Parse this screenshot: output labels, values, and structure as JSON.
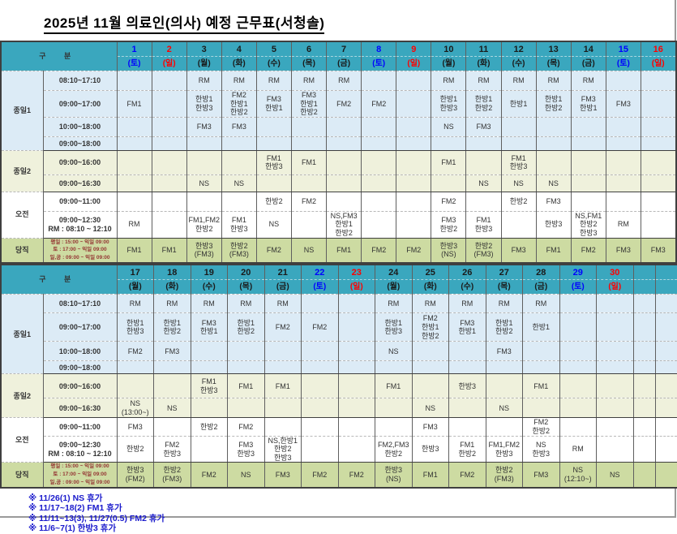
{
  "title": "2025년 11월  의료인(의사) 예정 근무표(서청솔)",
  "colors": {
    "header-bg": "#3AA7BE",
    "band-full1": "#DCEBF6",
    "band-full2": "#EFF1DC",
    "band-morning": "#FFFFFF",
    "band-duty": "#CDDBA2",
    "sat": "#0000FF",
    "sun": "#FF0000",
    "note-text": "#1A1ACC",
    "duty-time-text": "#943634",
    "cell-text": "#333333"
  },
  "header_label": "구  분",
  "rows": [
    {
      "group": "종일1",
      "group_span": 4,
      "time": "08:10~17:10"
    },
    {
      "time": "09:00~17:00"
    },
    {
      "time": "10:00~18:00"
    },
    {
      "time": "09:00~18:00"
    },
    {
      "group": "종일2",
      "group_span": 2,
      "time": "09:00~16:00"
    },
    {
      "time": "09:00~16:30"
    },
    {
      "group": "오전",
      "group_span": 2,
      "time": "09:00~11:00"
    },
    {
      "time": "09:00~12:30\nRM : 08:10 ~ 12:10"
    },
    {
      "group": "당직",
      "group_span": 1,
      "small": true,
      "time": "평일 : 15:00 ~ 익일 09:00\n토   : 17:00 ~ 익일 09:00\n일,공 : 09:00 ~ 익일 09:00"
    }
  ],
  "tables": [
    {
      "days": [
        {
          "num": "1",
          "dow": "(토)",
          "color": "sat"
        },
        {
          "num": "2",
          "dow": "(일)",
          "color": "sun"
        },
        {
          "num": "3",
          "dow": "(월)",
          "color": "wk"
        },
        {
          "num": "4",
          "dow": "(화)",
          "color": "wk"
        },
        {
          "num": "5",
          "dow": "(수)",
          "color": "wk"
        },
        {
          "num": "6",
          "dow": "(목)",
          "color": "wk"
        },
        {
          "num": "7",
          "dow": "(금)",
          "color": "wk"
        },
        {
          "num": "8",
          "dow": "(토)",
          "color": "sat"
        },
        {
          "num": "9",
          "dow": "(일)",
          "color": "sun"
        },
        {
          "num": "10",
          "dow": "(월)",
          "color": "wk"
        },
        {
          "num": "11",
          "dow": "(화)",
          "color": "wk"
        },
        {
          "num": "12",
          "dow": "(수)",
          "color": "wk"
        },
        {
          "num": "13",
          "dow": "(목)",
          "color": "wk"
        },
        {
          "num": "14",
          "dow": "(금)",
          "color": "wk"
        },
        {
          "num": "15",
          "dow": "(토)",
          "color": "sat"
        },
        {
          "num": "16",
          "dow": "(일)",
          "color": "sun"
        }
      ],
      "cells": [
        [
          "",
          "",
          "RM",
          "RM",
          "RM",
          "RM",
          "RM",
          "",
          "",
          "RM",
          "RM",
          "RM",
          "RM",
          "RM",
          "",
          ""
        ],
        [
          "FM1",
          "",
          "한방1\n한방3",
          "FM2\n한방1\n한방2",
          "FM3\n한방1",
          "FM3\n한방1\n한방2",
          "FM2",
          "FM2",
          "",
          "한방1\n한방3",
          "한방1\n한방2",
          "한방1",
          "한방1\n한방2",
          "FM3\n한방1",
          "FM3",
          ""
        ],
        [
          "",
          "",
          "FM3",
          "FM3",
          "",
          "",
          "",
          "",
          "",
          "NS",
          "FM3",
          "",
          "",
          "",
          "",
          ""
        ],
        [
          "",
          "",
          "",
          "",
          "",
          "",
          "",
          "",
          "",
          "",
          "",
          "",
          "",
          "",
          "",
          ""
        ],
        [
          "",
          "",
          "",
          "",
          "FM1\n한방3",
          "FM1",
          "",
          "",
          "",
          "FM1",
          "",
          "FM1\n한방3",
          "",
          "",
          "",
          ""
        ],
        [
          "",
          "",
          "NS",
          "NS",
          "",
          "",
          "",
          "",
          "",
          "",
          "NS",
          "NS",
          "NS",
          "",
          "",
          ""
        ],
        [
          "",
          "",
          "",
          "",
          "한방2",
          "FM2",
          "",
          "",
          "",
          "FM2",
          "",
          "한방2",
          "FM3",
          "",
          "",
          ""
        ],
        [
          "RM",
          "",
          "FM1,FM2\n한방2",
          "FM1\n한방3",
          "NS",
          "",
          "NS,FM3\n한방1\n한방2",
          "",
          "",
          "FM3\n한방2",
          "FM1\n한방3",
          "",
          "한방3",
          "NS,FM1\n한방2\n한방3",
          "RM",
          ""
        ],
        [
          "FM1",
          "FM1",
          "한방3\n(FM3)",
          "한방2\n(FM3)",
          "FM2",
          "NS",
          "FM1",
          "FM2",
          "FM2",
          "한방3\n(NS)",
          "한방2\n(FM3)",
          "FM3",
          "FM1",
          "FM2",
          "FM3",
          "FM3"
        ]
      ]
    },
    {
      "days": [
        {
          "num": "17",
          "dow": "(월)",
          "color": "wk"
        },
        {
          "num": "18",
          "dow": "(화)",
          "color": "wk"
        },
        {
          "num": "19",
          "dow": "(수)",
          "color": "wk"
        },
        {
          "num": "20",
          "dow": "(목)",
          "color": "wk"
        },
        {
          "num": "21",
          "dow": "(금)",
          "color": "wk"
        },
        {
          "num": "22",
          "dow": "(토)",
          "color": "sat"
        },
        {
          "num": "23",
          "dow": "(일)",
          "color": "sun"
        },
        {
          "num": "24",
          "dow": "(월)",
          "color": "wk"
        },
        {
          "num": "25",
          "dow": "(화)",
          "color": "wk"
        },
        {
          "num": "26",
          "dow": "(수)",
          "color": "wk"
        },
        {
          "num": "27",
          "dow": "(목)",
          "color": "wk"
        },
        {
          "num": "28",
          "dow": "(금)",
          "color": "wk"
        },
        {
          "num": "29",
          "dow": "(토)",
          "color": "sat"
        },
        {
          "num": "30",
          "dow": "(일)",
          "color": "sun"
        },
        {
          "num": "",
          "dow": "",
          "color": "wk"
        },
        {
          "num": "",
          "dow": "",
          "color": "wk"
        }
      ],
      "cells": [
        [
          "RM",
          "RM",
          "RM",
          "RM",
          "RM",
          "",
          "",
          "RM",
          "RM",
          "RM",
          "RM",
          "RM",
          "",
          "",
          "",
          ""
        ],
        [
          "한방1\n한방3",
          "한방1\n한방2",
          "FM3\n한방1",
          "한방1\n한방2",
          "FM2",
          "FM2",
          "",
          "한방1\n한방3",
          "FM2\n한방1\n한방2",
          "FM3\n한방1",
          "한방1\n한방2",
          "한방1",
          "",
          "",
          "",
          ""
        ],
        [
          "FM2",
          "FM3",
          "",
          "",
          "",
          "",
          "",
          "NS",
          "",
          "",
          "FM3",
          "",
          "",
          "",
          "",
          ""
        ],
        [
          "",
          "",
          "",
          "",
          "",
          "",
          "",
          "",
          "",
          "",
          "",
          "",
          "",
          "",
          "",
          ""
        ],
        [
          "",
          "",
          "FM1\n한방3",
          "FM1",
          "FM1",
          "",
          "",
          "FM1",
          "",
          "한방3",
          "",
          "FM1",
          "",
          "",
          "",
          ""
        ],
        [
          "NS\n(13:00~)",
          "NS",
          "",
          "",
          "",
          "",
          "",
          "",
          "NS",
          "",
          "NS",
          "",
          "",
          "",
          "",
          ""
        ],
        [
          "FM3",
          "",
          "한방2",
          "FM2",
          "",
          "",
          "",
          "",
          "FM3",
          "",
          "",
          "FM2\n한방2",
          "",
          "",
          "",
          ""
        ],
        [
          "한방2",
          "FM2\n한방3",
          "",
          "FM3\n한방3",
          "NS,한방1\n한방2\n한방3",
          "",
          "",
          "FM2,FM3\n한방2",
          "한방3",
          "FM1\n한방2",
          "FM1,FM2\n한방3",
          "NS\n한방3",
          "RM",
          "",
          "",
          ""
        ],
        [
          "한방3\n(FM2)",
          "한방2\n(FM3)",
          "FM2",
          "NS",
          "FM3",
          "FM2",
          "FM2",
          "한방3\n(NS)",
          "FM1",
          "FM2",
          "한방2\n(FM3)",
          "FM3",
          "NS\n(12:10~)",
          "NS",
          "",
          ""
        ]
      ]
    }
  ],
  "notes": [
    "※ 11/26(1) NS 휴가",
    "※ 11/17~18(2) FM1 휴가",
    "※ 11/11~13(3), 11/27(0.5) FM2 휴가",
    "※ 11/6~7(1) 한방3 휴가"
  ]
}
